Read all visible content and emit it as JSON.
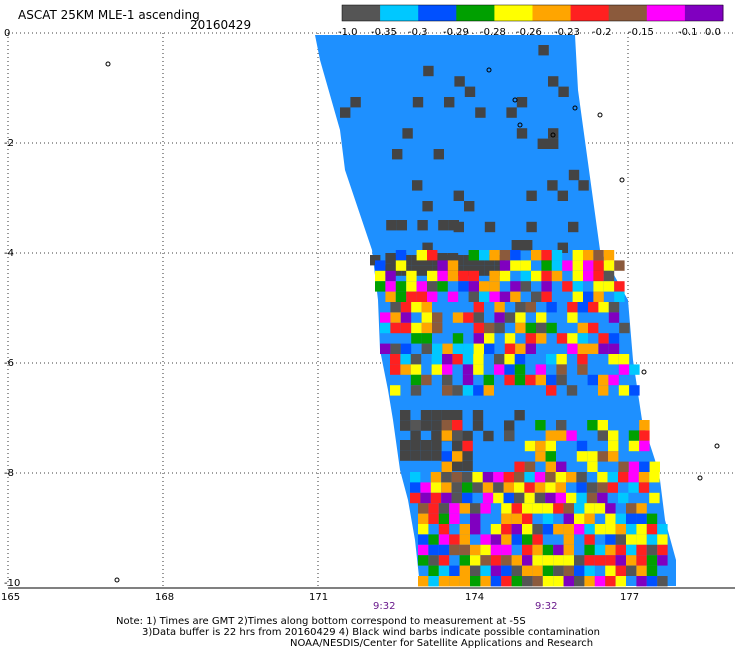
{
  "title": "ASCAT 25KM MLE-1 ascending",
  "date": "20160429",
  "legend": {
    "colors": [
      "#555555",
      "#00c8ff",
      "#0050ff",
      "#00a000",
      "#ffff00",
      "#ffa500",
      "#ff2020",
      "#8b5a3c",
      "#ff00ff",
      "#8000c0"
    ],
    "labels": [
      "-1.0",
      "-0.35",
      "-0.3",
      "-0.29",
      "-0.28",
      "-0.26",
      "-0.23",
      "-0.2",
      "-0.15",
      "-0.1",
      "0.0"
    ]
  },
  "map": {
    "lon_ticks": [
      "165",
      "168",
      "171",
      "174",
      "177"
    ],
    "lat_ticks": [
      "0",
      "-2",
      "-4",
      "-6",
      "-8",
      "-10"
    ],
    "swath_fill": "#1e90ff",
    "no_data_color": "#444444"
  },
  "times": [
    "9:32",
    "9:32"
  ],
  "notes": [
    "Note: 1) Times are GMT 2)Times along bottom correspond to measurement at -5S",
    "3)Data buffer is 22 hrs from 20160429 4) Black wind barbs indicate possible contamination",
    "NOAA/NESDIS/Center for Satellite Applications and Research"
  ]
}
